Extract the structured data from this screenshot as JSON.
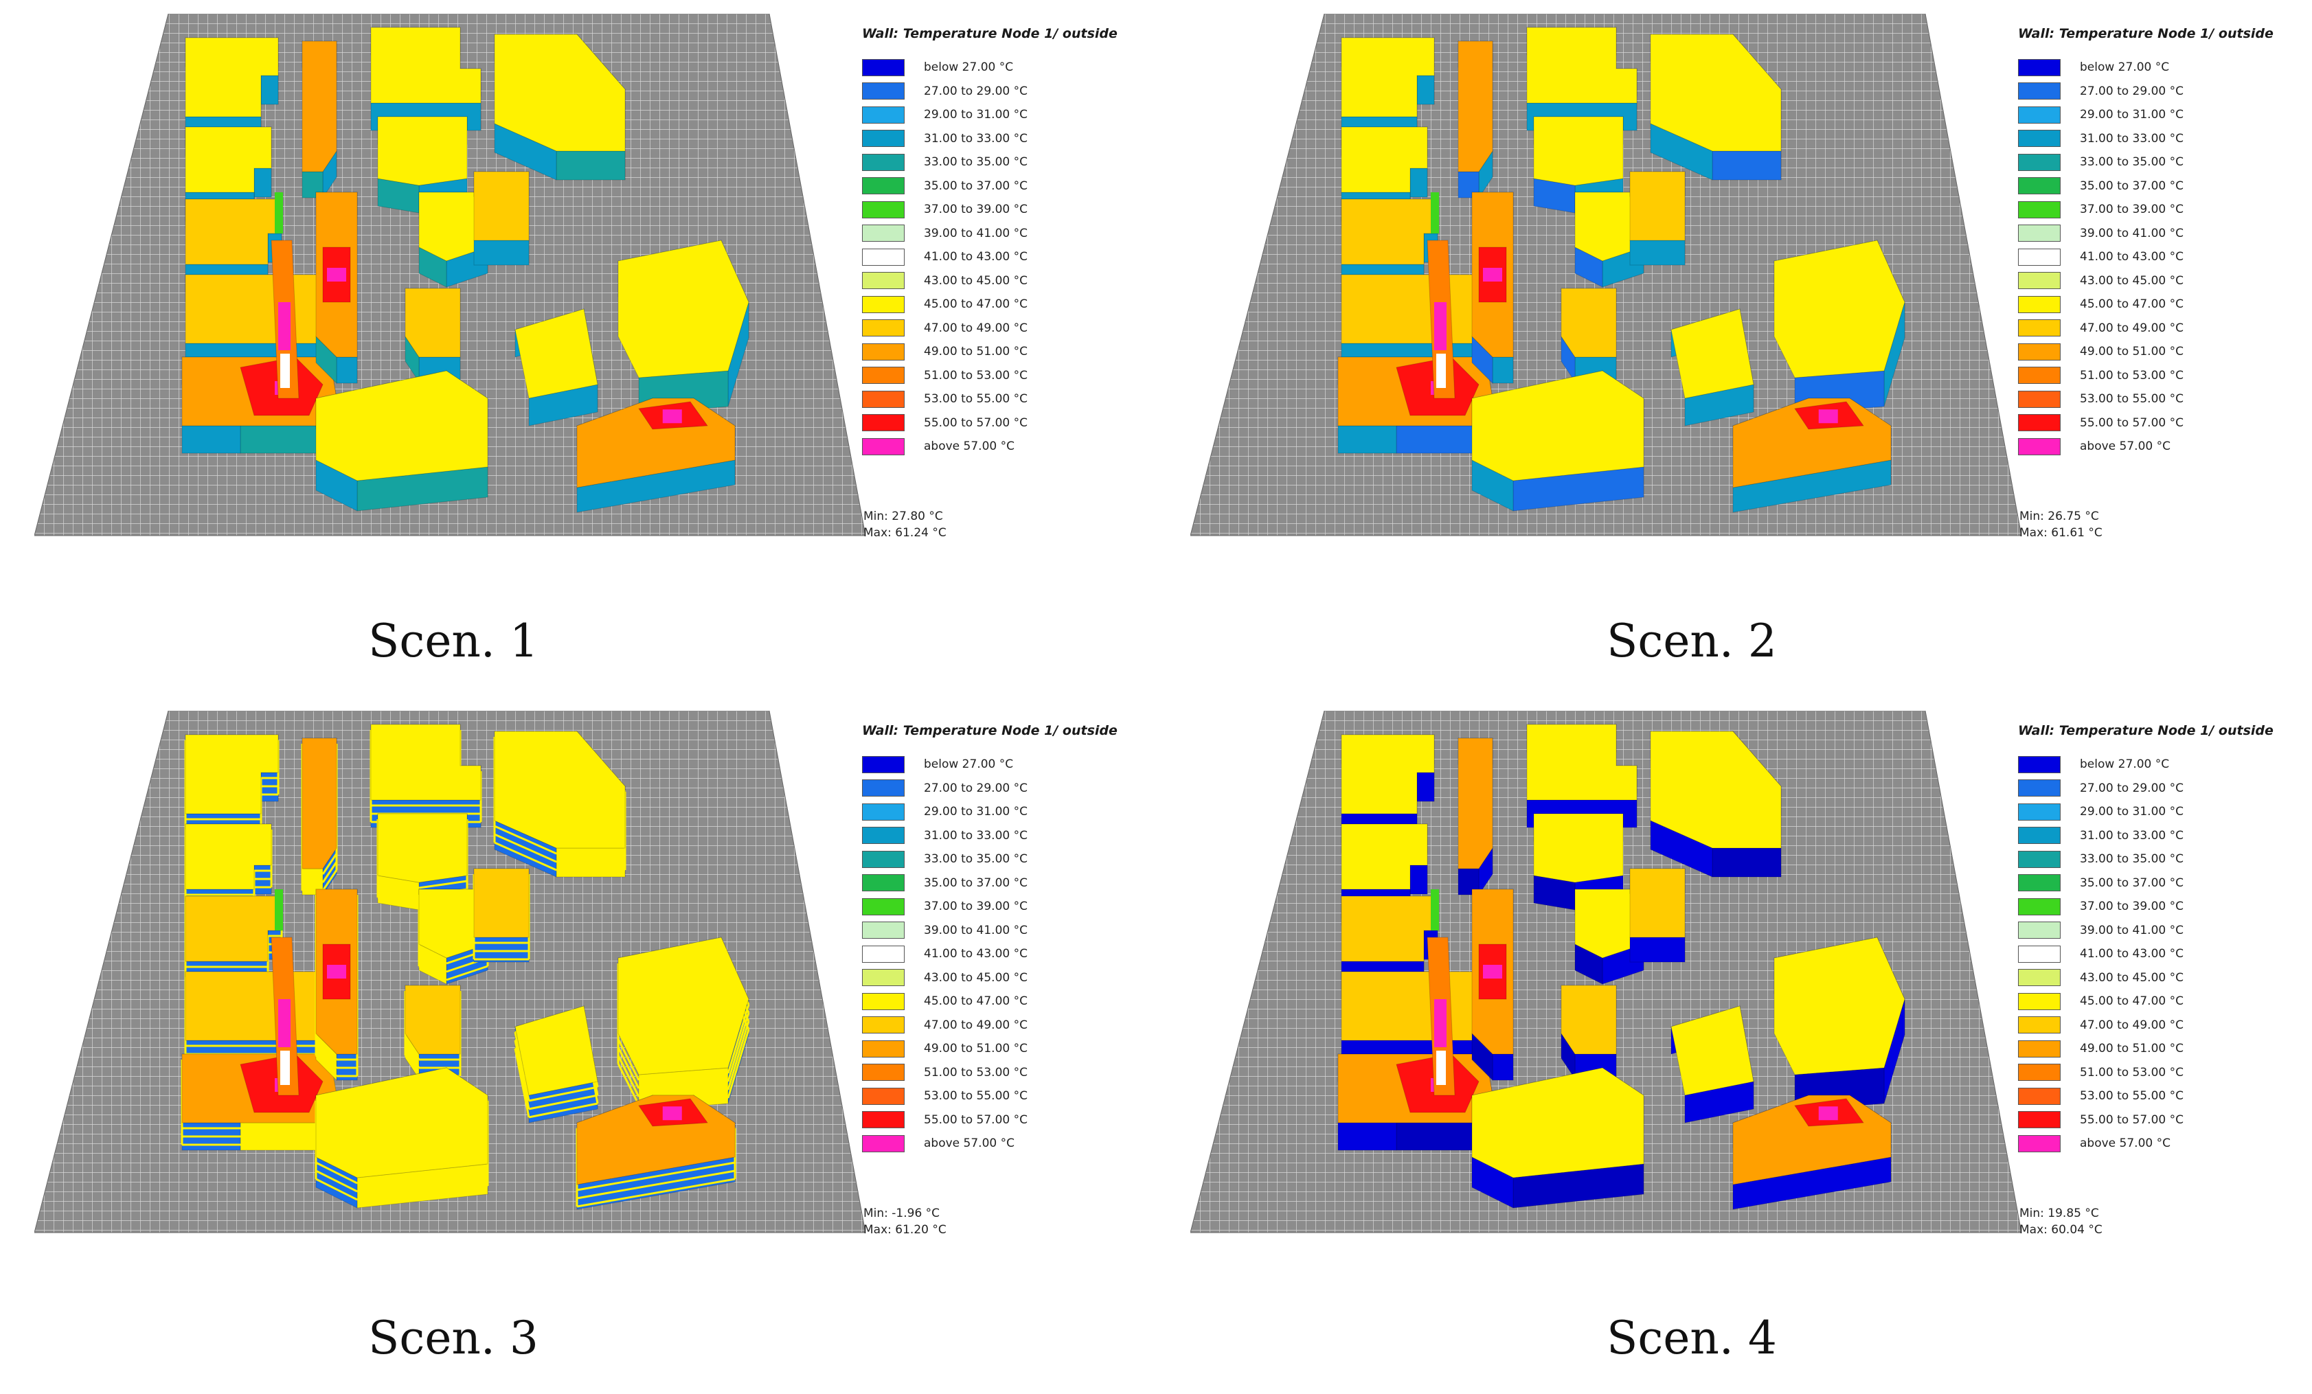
{
  "legend": {
    "title": "Wall: Temperature Node 1/ outside",
    "items": [
      {
        "label": "below 27.00 °C",
        "color": "#0000e0"
      },
      {
        "label": "27.00 to 29.00 °C",
        "color": "#1a6fe8"
      },
      {
        "label": "29.00 to 31.00 °C",
        "color": "#1ca6e8"
      },
      {
        "label": "31.00 to 33.00 °C",
        "color": "#0a9ac8"
      },
      {
        "label": "33.00 to 35.00 °C",
        "color": "#15a3a0"
      },
      {
        "label": "35.00 to 37.00 °C",
        "color": "#1fb84a"
      },
      {
        "label": "37.00 to 39.00 °C",
        "color": "#3ed61e"
      },
      {
        "label": "39.00 to 41.00 °C",
        "color": "#c6efc0"
      },
      {
        "label": "41.00 to 43.00 °C",
        "color": "#ffffff"
      },
      {
        "label": "43.00 to 45.00 °C",
        "color": "#d9f26a"
      },
      {
        "label": "45.00 to 47.00 °C",
        "color": "#fff200"
      },
      {
        "label": "47.00 to 49.00 °C",
        "color": "#ffcc00"
      },
      {
        "label": "49.00 to 51.00 °C",
        "color": "#ffa000"
      },
      {
        "label": "51.00 to 53.00 °C",
        "color": "#ff8000"
      },
      {
        "label": "53.00 to 55.00 °C",
        "color": "#ff6010"
      },
      {
        "label": "55.00 to 57.00 °C",
        "color": "#ff1010"
      },
      {
        "label": "above 57.00 °C",
        "color": "#ff20c0"
      }
    ]
  },
  "scenarios": [
    {
      "caption": "Scen. 1",
      "min": "Min: 27.80 °C",
      "max": "Max: 61.24 °C",
      "wall_color": "#0a9ac8",
      "accent_color": "#15a3a0"
    },
    {
      "caption": "Scen. 2",
      "min": "Min: 26.75 °C",
      "max": "Max: 61.61 °C",
      "wall_color": "#0a9ac8",
      "accent_color": "#1a6fe8"
    },
    {
      "caption": "Scen. 3",
      "min": "Min: -1.96 °C",
      "max": "Max: 61.20 °C",
      "wall_color": "#1a6fe8",
      "accent_color": "#fff200"
    },
    {
      "caption": "Scen. 4",
      "min": "Min: 19.85 °C",
      "max": "Max: 60.04 °C",
      "wall_color": "#0000e0",
      "accent_color": "#0000c0"
    }
  ]
}
